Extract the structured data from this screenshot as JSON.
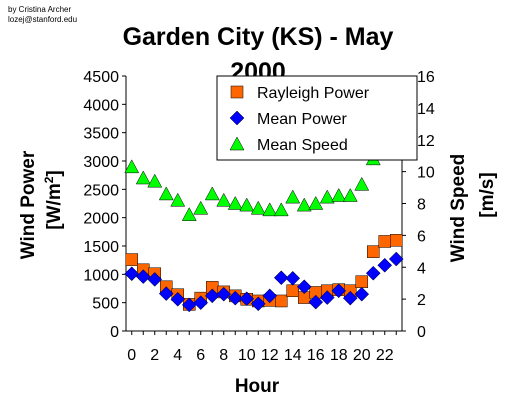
{
  "credit": {
    "line1": "by Cristina Archer",
    "line2": "lozej@stanford.edu"
  },
  "chart_data": {
    "type": "line",
    "title": "Garden City (KS) - May",
    "title_line2": "2000",
    "xlabel": "Hour",
    "ylabel_left": "Wind Power",
    "ylabel_left_unit": "[W/m",
    "ylabel_left_unit_sup": "2",
    "ylabel_left_unit_end": "]",
    "ylabel_right": "Wind Speed",
    "ylabel_right_unit": "[m/s]",
    "x": [
      0,
      1,
      2,
      3,
      4,
      5,
      6,
      7,
      8,
      9,
      10,
      11,
      12,
      13,
      14,
      15,
      16,
      17,
      18,
      19,
      20,
      21,
      22,
      23
    ],
    "x_tick_labels": [
      "0",
      "2",
      "4",
      "6",
      "8",
      "10",
      "12",
      "14",
      "16",
      "18",
      "20",
      "22"
    ],
    "xlim": [
      -0.5,
      23.5
    ],
    "ylim_left": [
      0,
      4500
    ],
    "left_ticks": [
      "0",
      "500",
      "1000",
      "1500",
      "2000",
      "2500",
      "3000",
      "3500",
      "4000",
      "4500"
    ],
    "ylim_right": [
      0,
      16
    ],
    "right_ticks": [
      "0",
      "2",
      "4",
      "6",
      "8",
      "10",
      "12",
      "14",
      "16"
    ],
    "grid": false,
    "legend_position": "top-right",
    "series": [
      {
        "name": "Rayleigh Power",
        "axis": "left",
        "marker": "square",
        "color": "#ff6600",
        "values": [
          1260,
          1080,
          1010,
          780,
          640,
          470,
          580,
          770,
          690,
          620,
          560,
          530,
          540,
          530,
          710,
          590,
          680,
          710,
          730,
          710,
          870,
          1400,
          1580,
          1600
        ]
      },
      {
        "name": "Mean Power",
        "axis": "left",
        "marker": "diamond",
        "color": "#0000ff",
        "values": [
          1010,
          960,
          910,
          660,
          560,
          460,
          500,
          620,
          650,
          580,
          570,
          480,
          620,
          940,
          930,
          780,
          510,
          590,
          710,
          580,
          650,
          1020,
          1160,
          1270
        ]
      },
      {
        "name": "Mean Speed",
        "axis": "right",
        "marker": "triangle",
        "color": "#00ff00",
        "values": [
          10.3,
          9.6,
          9.4,
          8.6,
          8.2,
          7.3,
          7.7,
          8.6,
          8.2,
          8.0,
          7.9,
          7.7,
          7.6,
          7.6,
          8.4,
          7.9,
          8.0,
          8.4,
          8.5,
          8.5,
          9.2,
          10.8,
          11.2,
          11.2
        ]
      }
    ]
  }
}
